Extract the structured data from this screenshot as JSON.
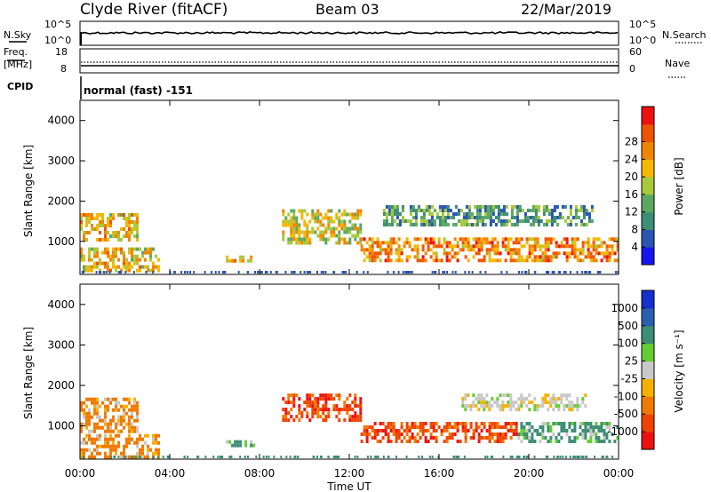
{
  "header": {
    "site": "Clyde River (fitACF)",
    "beam": "Beam 03",
    "date": "22/Mar/2019"
  },
  "top_panels": {
    "nsky": {
      "left_label": "N.Sky",
      "left_ticks": [
        "10^5",
        "10^0"
      ],
      "right_label": "N.Search",
      "right_ticks": [
        "10^5",
        "10^0"
      ]
    },
    "freq": {
      "left_label": "Freq.",
      "unit": "[MHz]",
      "left_ticks": [
        "18",
        "8"
      ],
      "right_label": "Nave",
      "right_ticks": [
        "60",
        "0"
      ]
    },
    "cpid": {
      "label": "CPID",
      "text": "normal (fast) -151"
    }
  },
  "colors": {
    "power": [
      "#1515ee",
      "#2a55b0",
      "#3c8e74",
      "#5ca862",
      "#a8c93a",
      "#f5b700",
      "#f08600",
      "#ee5500",
      "#ee1111"
    ],
    "velocity": [
      "#ee1111",
      "#ee4400",
      "#f07a00",
      "#f5b000",
      "#c8c8c8",
      "#66cc33",
      "#3c8e74",
      "#2a5fb0",
      "#1530cc"
    ]
  },
  "chart_data": [
    {
      "type": "heatmap",
      "panel": "power",
      "ylabel": "Slant Range [km]",
      "ylim": [
        180,
        4500
      ],
      "yticks": [
        "1000",
        "2000",
        "3000",
        "4000"
      ],
      "xlim": [
        "00:00",
        "24:00"
      ],
      "colorbar": {
        "label": "Power [dB]",
        "ticks": [
          "4",
          "8",
          "12",
          "16",
          "20",
          "24",
          "28"
        ],
        "range": [
          0,
          32
        ]
      },
      "echo_regions": [
        {
          "t_start": 0.0,
          "t_end": 2.6,
          "r_min": 1000,
          "r_max": 1700,
          "value": 22
        },
        {
          "t_start": 0.0,
          "t_end": 3.5,
          "r_min": 250,
          "r_max": 850,
          "value": 22
        },
        {
          "t_start": 6.5,
          "t_end": 7.8,
          "r_min": 480,
          "r_max": 650,
          "value": 22
        },
        {
          "t_start": 9.0,
          "t_end": 12.5,
          "r_min": 950,
          "r_max": 1800,
          "value": 20
        },
        {
          "t_start": 12.5,
          "t_end": 24.0,
          "r_min": 550,
          "r_max": 1100,
          "value": 26
        },
        {
          "t_start": 13.5,
          "t_end": 23.0,
          "r_min": 1400,
          "r_max": 1900,
          "value": 12
        }
      ]
    },
    {
      "type": "heatmap",
      "panel": "velocity",
      "ylabel": "Slant Range [km]",
      "ylim": [
        180,
        4500
      ],
      "yticks": [
        "1000",
        "2000",
        "3000",
        "4000"
      ],
      "xlim": [
        "00:00",
        "24:00"
      ],
      "xticks": [
        "00:00",
        "04:00",
        "08:00",
        "12:00",
        "16:00",
        "20:00",
        "00:00"
      ],
      "xlabel": "Time UT",
      "colorbar": {
        "label": "Velocity [m s⁻¹]",
        "ticks": [
          "1000",
          "500",
          "100",
          "25",
          "-25",
          "-100",
          "-500",
          "-1000"
        ]
      },
      "echo_regions": [
        {
          "t_start": 0.0,
          "t_end": 2.6,
          "r_min": 900,
          "r_max": 1700,
          "value": -100
        },
        {
          "t_start": 0.0,
          "t_end": 3.5,
          "r_min": 250,
          "r_max": 800,
          "value": -100
        },
        {
          "t_start": 6.5,
          "t_end": 7.8,
          "r_min": 480,
          "r_max": 650,
          "value": 100
        },
        {
          "t_start": 9.0,
          "t_end": 12.5,
          "r_min": 1100,
          "r_max": 1800,
          "value": -500
        },
        {
          "t_start": 12.5,
          "t_end": 19.5,
          "r_min": 600,
          "r_max": 1100,
          "value": -500
        },
        {
          "t_start": 19.5,
          "t_end": 24.0,
          "r_min": 600,
          "r_max": 1100,
          "value": 100
        },
        {
          "t_start": 17.0,
          "t_end": 22.5,
          "r_min": 1400,
          "r_max": 1800,
          "value": 0
        }
      ]
    }
  ]
}
